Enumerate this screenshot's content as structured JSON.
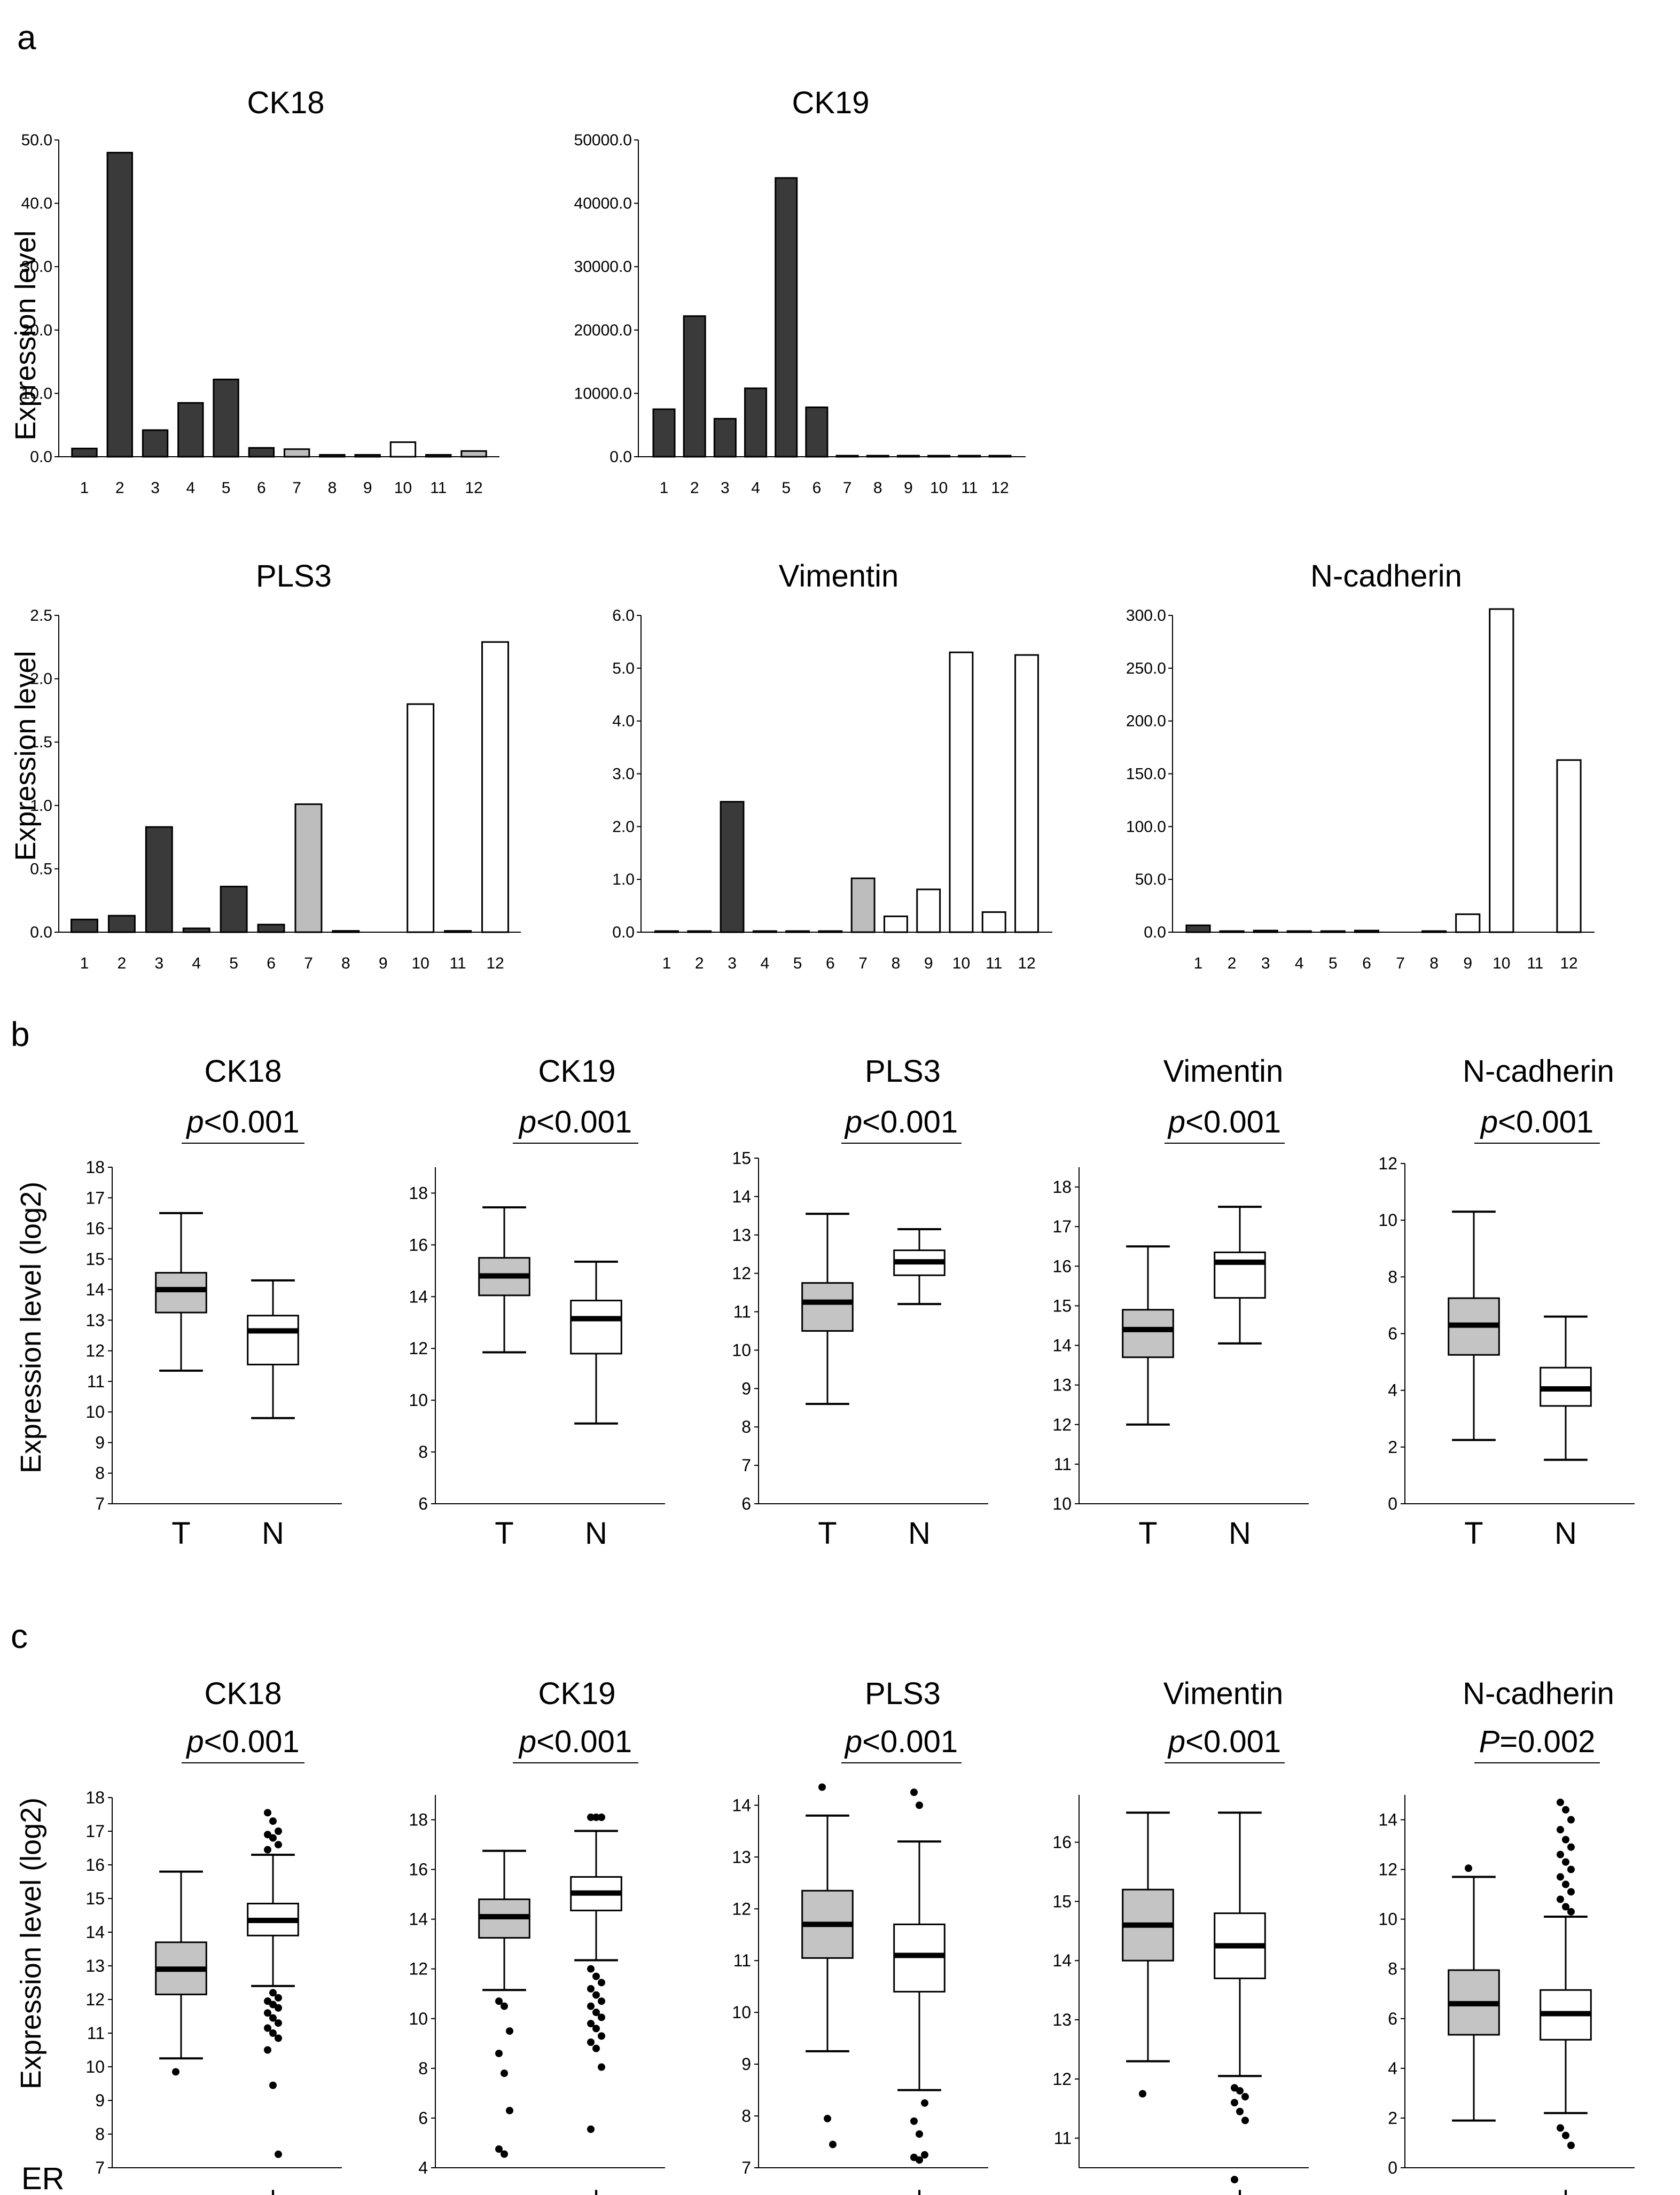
{
  "panel_labels": {
    "a": "a",
    "b": "b",
    "c": "c"
  },
  "axis_titles": {
    "bar_ylabel": "Expression level",
    "box_ylabel": "Expression level (log2)",
    "er_label": "ER"
  },
  "colors": {
    "dark": "#3a3a3a",
    "grey": "#bdbdbd",
    "white": "#ffffff",
    "box_grey": "#c4c4c4"
  },
  "chart_data": [
    {
      "id": "a-ck18",
      "panel": "a",
      "type": "bar",
      "title": "CK18",
      "categories": [
        "1",
        "2",
        "3",
        "4",
        "5",
        "6",
        "7",
        "8",
        "9",
        "10",
        "11",
        "12"
      ],
      "values": [
        1.3,
        48.0,
        4.2,
        8.5,
        12.2,
        1.4,
        1.2,
        0.3,
        0.3,
        2.3,
        0.3,
        0.9
      ],
      "fills": [
        "dark",
        "dark",
        "dark",
        "dark",
        "dark",
        "dark",
        "grey",
        "dark",
        "dark",
        "white",
        "dark",
        "grey"
      ],
      "ylim": [
        0,
        50
      ],
      "yticks": [
        0,
        10,
        20,
        30,
        40,
        50
      ],
      "ytick_labels": [
        "0.0",
        "10.0",
        "20.0",
        "30.0",
        "40.0",
        "50.0"
      ]
    },
    {
      "id": "a-ck19",
      "panel": "a",
      "type": "bar",
      "title": "CK19",
      "categories": [
        "1",
        "2",
        "3",
        "4",
        "5",
        "6",
        "7",
        "8",
        "9",
        "10",
        "11",
        "12"
      ],
      "values": [
        7500,
        22200,
        6000,
        10800,
        44000,
        7800,
        150,
        150,
        150,
        150,
        150,
        150
      ],
      "fills": [
        "dark",
        "dark",
        "dark",
        "dark",
        "dark",
        "dark",
        "grey",
        "dark",
        "dark",
        "white",
        "dark",
        "white"
      ],
      "ylim": [
        0,
        50000
      ],
      "yticks": [
        0,
        10000,
        20000,
        30000,
        40000,
        50000
      ],
      "ytick_labels": [
        "0.0",
        "10000.0",
        "20000.0",
        "30000.0",
        "40000.0",
        "50000.0"
      ]
    },
    {
      "id": "a-pls3",
      "panel": "a",
      "type": "bar",
      "title": "PLS3",
      "categories": [
        "1",
        "2",
        "3",
        "4",
        "5",
        "6",
        "7",
        "8",
        "9",
        "10",
        "11",
        "12"
      ],
      "values": [
        0.1,
        0.13,
        0.83,
        0.03,
        0.36,
        0.06,
        1.01,
        0.01,
        0.0,
        1.8,
        0.01,
        2.29
      ],
      "fills": [
        "dark",
        "dark",
        "dark",
        "dark",
        "dark",
        "dark",
        "grey",
        "dark",
        "dark",
        "white",
        "dark",
        "white"
      ],
      "ylim": [
        0,
        2.5
      ],
      "yticks": [
        0,
        0.5,
        1,
        1.5,
        2,
        2.5
      ],
      "ytick_labels": [
        "0.0",
        "0.5",
        "1.0",
        "1.5",
        "2.0",
        "2.5"
      ]
    },
    {
      "id": "a-vim",
      "panel": "a",
      "type": "bar",
      "title": "Vimentin",
      "categories": [
        "1",
        "2",
        "3",
        "4",
        "5",
        "6",
        "7",
        "8",
        "9",
        "10",
        "11",
        "12"
      ],
      "values": [
        0.02,
        0.02,
        2.47,
        0.02,
        0.02,
        0.02,
        1.02,
        0.3,
        0.81,
        5.3,
        0.38,
        5.25
      ],
      "fills": [
        "dark",
        "dark",
        "dark",
        "dark",
        "dark",
        "dark",
        "grey",
        "white",
        "white",
        "white",
        "white",
        "white"
      ],
      "ylim": [
        0,
        6
      ],
      "yticks": [
        0,
        1,
        2,
        3,
        4,
        5,
        6
      ],
      "ytick_labels": [
        "0.0",
        "1.0",
        "2.0",
        "3.0",
        "4.0",
        "5.0",
        "6.0"
      ]
    },
    {
      "id": "a-ncad",
      "panel": "a",
      "type": "bar",
      "title": "N-cadherin",
      "categories": [
        "1",
        "2",
        "3",
        "4",
        "5",
        "6",
        "7",
        "8",
        "9",
        "10",
        "11",
        "12"
      ],
      "values": [
        6.5,
        1.0,
        1.5,
        1.0,
        1.0,
        1.5,
        0.0,
        1.0,
        17.0,
        306.0,
        0.0,
        163.0
      ],
      "fills": [
        "dark",
        "dark",
        "dark",
        "dark",
        "dark",
        "dark",
        "dark",
        "dark",
        "white",
        "white",
        "white",
        "white"
      ],
      "ylim": [
        0,
        300
      ],
      "yticks": [
        0,
        50,
        100,
        150,
        200,
        250,
        300
      ],
      "ytick_labels": [
        "0.0",
        "50.0",
        "100.0",
        "150.0",
        "200.0",
        "250.0",
        "300.0"
      ]
    },
    {
      "id": "b-ck18",
      "panel": "b",
      "type": "box",
      "title": "CK18",
      "pvalue_prefix": "p",
      "pvalue_rest": "<0.001",
      "categories": [
        "T",
        "N"
      ],
      "ylim": [
        7,
        18
      ],
      "yticks": [
        7,
        8,
        9,
        10,
        11,
        12,
        13,
        14,
        15,
        16,
        17,
        18
      ],
      "boxes": [
        {
          "min": 11.35,
          "q1": 13.25,
          "median": 14.0,
          "q3": 14.55,
          "max": 16.5,
          "fill": "grey"
        },
        {
          "min": 9.8,
          "q1": 11.55,
          "median": 12.65,
          "q3": 13.15,
          "max": 14.3,
          "fill": "white"
        }
      ]
    },
    {
      "id": "b-ck19",
      "panel": "b",
      "type": "box",
      "title": "CK19",
      "pvalue_prefix": "p",
      "pvalue_rest": "<0.001",
      "categories": [
        "T",
        "N"
      ],
      "ylim": [
        6,
        19
      ],
      "yticks": [
        6,
        8,
        10,
        12,
        14,
        16,
        18
      ],
      "boxes": [
        {
          "min": 11.85,
          "q1": 14.05,
          "median": 14.8,
          "q3": 15.5,
          "max": 17.45,
          "fill": "grey"
        },
        {
          "min": 9.1,
          "q1": 11.8,
          "median": 13.15,
          "q3": 13.85,
          "max": 15.35,
          "fill": "white"
        }
      ]
    },
    {
      "id": "b-pls3",
      "panel": "b",
      "type": "box",
      "title": "PLS3",
      "pvalue_prefix": "p",
      "pvalue_rest": "<0.001",
      "categories": [
        "T",
        "N"
      ],
      "ylim": [
        6,
        15
      ],
      "yticks": [
        6,
        7,
        8,
        9,
        10,
        11,
        12,
        13,
        14,
        15
      ],
      "boxes": [
        {
          "min": 8.6,
          "q1": 10.5,
          "median": 11.25,
          "q3": 11.75,
          "max": 13.55,
          "fill": "grey"
        },
        {
          "min": 11.2,
          "q1": 11.95,
          "median": 12.3,
          "q3": 12.6,
          "max": 13.15,
          "fill": "white"
        }
      ]
    },
    {
      "id": "b-vim",
      "panel": "b",
      "type": "box",
      "title": "Vimentin",
      "pvalue_prefix": "p",
      "pvalue_rest": "<0.001",
      "categories": [
        "T",
        "N"
      ],
      "ylim": [
        10,
        18.5
      ],
      "yticks": [
        10,
        11,
        12,
        13,
        14,
        15,
        16,
        17,
        18
      ],
      "boxes": [
        {
          "min": 12.0,
          "q1": 13.7,
          "median": 14.4,
          "q3": 14.9,
          "max": 16.5,
          "fill": "grey"
        },
        {
          "min": 14.05,
          "q1": 15.2,
          "median": 16.1,
          "q3": 16.35,
          "max": 17.5,
          "fill": "white"
        }
      ]
    },
    {
      "id": "b-ncad",
      "panel": "b",
      "type": "box",
      "title": "N-cadherin",
      "pvalue_prefix": "p",
      "pvalue_rest": "<0.001",
      "categories": [
        "T",
        "N"
      ],
      "ylim": [
        0,
        12
      ],
      "yticks": [
        0,
        2,
        4,
        6,
        8,
        10,
        12
      ],
      "boxes": [
        {
          "min": 2.25,
          "q1": 5.25,
          "median": 6.3,
          "q3": 7.25,
          "max": 10.3,
          "fill": "grey"
        },
        {
          "min": 1.55,
          "q1": 3.45,
          "median": 4.05,
          "q3": 4.8,
          "max": 6.6,
          "fill": "white"
        }
      ]
    },
    {
      "id": "c-ck18",
      "panel": "c",
      "type": "box",
      "title": "CK18",
      "pvalue_prefix": "p",
      "pvalue_rest": "<0.001",
      "categories": [
        "-",
        "+"
      ],
      "ylim": [
        7,
        18
      ],
      "yticks": [
        7,
        8,
        9,
        10,
        11,
        12,
        13,
        14,
        15,
        16,
        17,
        18
      ],
      "boxes": [
        {
          "min": 10.25,
          "q1": 12.15,
          "median": 12.9,
          "q3": 13.7,
          "max": 15.8,
          "fill": "grey",
          "outliers": [
            9.85
          ]
        },
        {
          "min": 12.4,
          "q1": 13.9,
          "median": 14.35,
          "q3": 14.85,
          "max": 16.3,
          "fill": "white",
          "outliers": [
            17.55,
            17.3,
            17.0,
            16.9,
            16.8,
            16.6,
            16.45,
            12.2,
            12.05,
            11.95,
            11.85,
            11.75,
            11.6,
            11.45,
            11.3,
            11.15,
            11.0,
            10.85,
            10.5,
            9.45,
            7.4
          ]
        }
      ]
    },
    {
      "id": "c-ck19",
      "panel": "c",
      "type": "box",
      "title": "CK19",
      "pvalue_prefix": "p",
      "pvalue_rest": "<0.001",
      "categories": [
        "-",
        "+"
      ],
      "ylim": [
        4,
        19
      ],
      "yticks": [
        4,
        6,
        8,
        10,
        12,
        14,
        16,
        18
      ],
      "boxes": [
        {
          "min": 11.15,
          "q1": 13.25,
          "median": 14.1,
          "q3": 14.8,
          "max": 16.75,
          "fill": "grey",
          "outliers": [
            10.7,
            10.5,
            9.5,
            8.6,
            7.8,
            6.3,
            4.75,
            4.55
          ]
        },
        {
          "min": 12.35,
          "q1": 14.35,
          "median": 15.05,
          "q3": 15.7,
          "max": 17.55,
          "fill": "white",
          "outliers": [
            18.1,
            18.1,
            18.1,
            12.0,
            11.7,
            11.45,
            11.2,
            10.95,
            10.7,
            10.5,
            10.25,
            10.05,
            9.8,
            9.6,
            9.3,
            9.05,
            8.8,
            8.05,
            5.55
          ]
        }
      ]
    },
    {
      "id": "c-pls3",
      "panel": "c",
      "type": "box",
      "title": "PLS3",
      "pvalue_prefix": "p",
      "pvalue_rest": "<0.001",
      "categories": [
        "-",
        "+"
      ],
      "ylim": [
        7,
        14.2
      ],
      "yticks": [
        7,
        8,
        9,
        10,
        11,
        12,
        13,
        14
      ],
      "boxes": [
        {
          "min": 9.25,
          "q1": 11.05,
          "median": 11.7,
          "q3": 12.35,
          "max": 13.8,
          "fill": "grey",
          "outliers": [
            14.35,
            7.95,
            7.45
          ]
        },
        {
          "min": 8.5,
          "q1": 10.4,
          "median": 11.1,
          "q3": 11.7,
          "max": 13.3,
          "fill": "white",
          "outliers": [
            14.25,
            14.0,
            8.25,
            7.9,
            7.65,
            7.25,
            7.2,
            7.15
          ]
        }
      ]
    },
    {
      "id": "c-vim",
      "panel": "c",
      "type": "box",
      "title": "Vimentin",
      "pvalue_prefix": "p",
      "pvalue_rest": "<0.001",
      "categories": [
        "-",
        "+"
      ],
      "ylim": [
        10.5,
        16.8
      ],
      "yticks": [
        11,
        12,
        13,
        14,
        15,
        16
      ],
      "boxes": [
        {
          "min": 12.3,
          "q1": 14.0,
          "median": 14.6,
          "q3": 15.2,
          "max": 16.5,
          "fill": "grey",
          "outliers": [
            11.75
          ]
        },
        {
          "min": 12.05,
          "q1": 13.7,
          "median": 14.25,
          "q3": 14.8,
          "max": 16.5,
          "fill": "white",
          "outliers": [
            11.85,
            11.8,
            11.7,
            11.6,
            11.45,
            11.3,
            10.3
          ]
        }
      ]
    },
    {
      "id": "c-ncad",
      "panel": "c",
      "type": "box",
      "title": "N-cadherin",
      "pvalue_prefix": "P",
      "pvalue_rest": "=0.002",
      "categories": [
        "-",
        "+"
      ],
      "ylim": [
        0,
        15
      ],
      "yticks": [
        0,
        2,
        4,
        6,
        8,
        10,
        12,
        14
      ],
      "boxes": [
        {
          "min": 1.9,
          "q1": 5.35,
          "median": 6.6,
          "q3": 7.95,
          "max": 11.7,
          "fill": "grey",
          "outliers": [
            12.05
          ]
        },
        {
          "min": 2.2,
          "q1": 5.15,
          "median": 6.2,
          "q3": 7.15,
          "max": 10.1,
          "fill": "white",
          "outliers": [
            14.7,
            14.4,
            14.0,
            13.6,
            13.2,
            12.9,
            12.6,
            12.3,
            12.0,
            11.7,
            11.4,
            11.1,
            10.8,
            10.5,
            10.3,
            1.6,
            1.3,
            0.9
          ]
        }
      ]
    }
  ]
}
